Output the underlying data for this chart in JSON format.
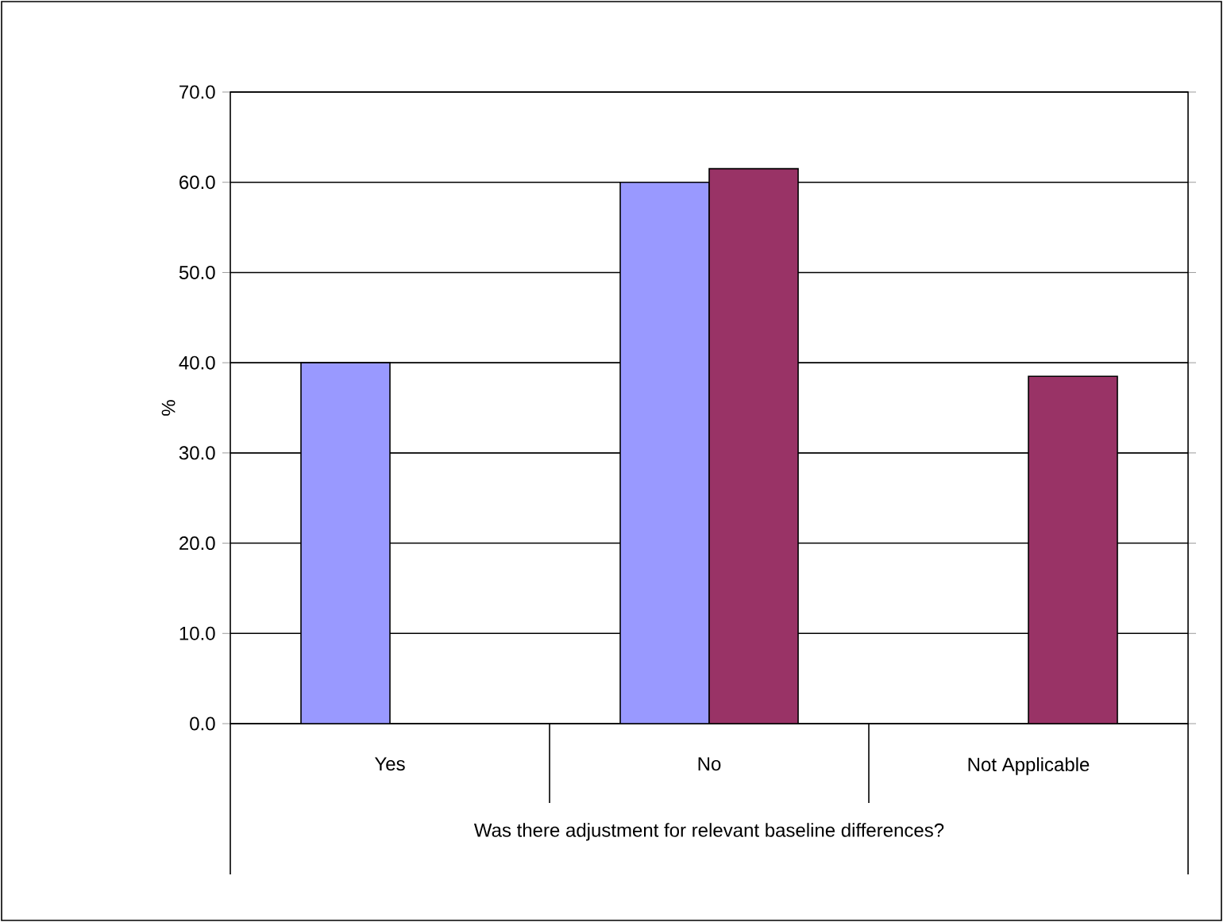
{
  "chart_data": {
    "type": "bar",
    "xlabel": "Was there adjustment for relevant baseline differences?",
    "ylabel": "%",
    "categories": [
      "Yes",
      "No",
      "Not Applicable"
    ],
    "series": [
      {
        "color": "#9999ff",
        "values": [
          40.0,
          60.0,
          null
        ]
      },
      {
        "color": "#993366",
        "values": [
          null,
          61.5,
          38.5
        ]
      }
    ],
    "ylim": [
      0,
      70
    ],
    "yticks": [
      {
        "value": 0,
        "label": "0.0"
      },
      {
        "value": 10,
        "label": "10.0"
      },
      {
        "value": 20,
        "label": "20.0"
      },
      {
        "value": 30,
        "label": "30.0"
      },
      {
        "value": 40,
        "label": "40.0"
      },
      {
        "value": 50,
        "label": "50.0"
      },
      {
        "value": 60,
        "label": "60.0"
      },
      {
        "value": 70,
        "label": "70.0"
      }
    ],
    "grid": "y"
  }
}
